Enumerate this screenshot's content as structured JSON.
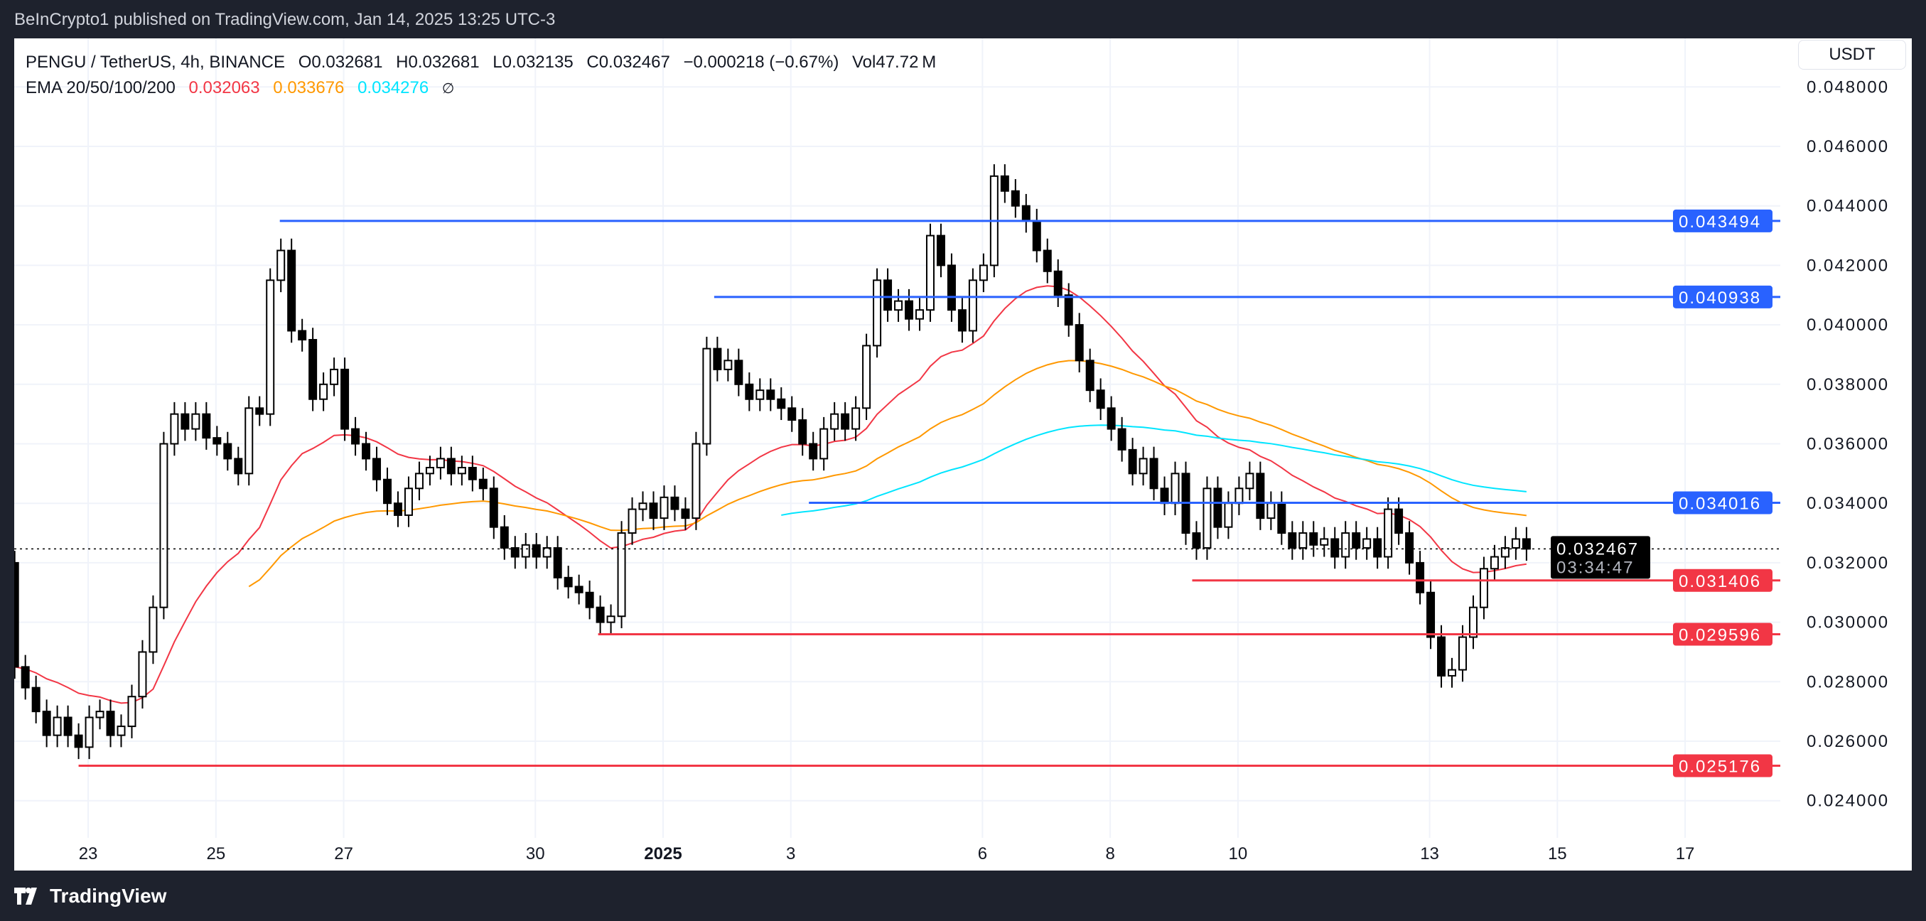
{
  "header": {
    "published": "BeInCrypto1 published on TradingView.com, Jan 14, 2025 13:25 UTC-3"
  },
  "legend": {
    "symbol": "PENGU / TetherUS, 4h, BINANCE",
    "open": "O0.032681",
    "high": "H0.032681",
    "low": "L0.032135",
    "close": "C0.032467",
    "change": "−0.000218 (−0.67%)",
    "volume": "Vol47.72 M",
    "ema_label": "EMA 20/50/100/200",
    "ema_values": [
      "0.032063",
      "0.033676",
      "0.034276"
    ],
    "ema_colors": [
      "#f23645",
      "#ff9800",
      "#00e5ff"
    ],
    "visibility_icon": "eye-off-icon"
  },
  "currency_button": "USDT",
  "footer": {
    "logo": "TradingView"
  },
  "chart_data": {
    "type": "candlestick",
    "interval": "4h",
    "x_tick_labels": [
      "23",
      "25",
      "27",
      "30",
      "2025",
      "3",
      "6",
      "8",
      "10",
      "13",
      "15",
      "17"
    ],
    "y_ticks": [
      0.024,
      0.026,
      0.028,
      0.03,
      0.032,
      0.034,
      0.036,
      0.038,
      0.04,
      0.042,
      0.044,
      0.046,
      0.048
    ],
    "y_tick_labels": [
      "0.024000",
      "0.026000",
      "0.028000",
      "0.030000",
      "0.032000",
      "0.034000",
      "0.036000",
      "0.038000",
      "0.040000",
      "0.042000",
      "0.044000",
      "0.046000",
      "0.048000"
    ],
    "ylim": [
      0.0228,
      0.0486
    ],
    "first_open": 0.032,
    "closes": [
      0.0285,
      0.0278,
      0.027,
      0.0262,
      0.0268,
      0.0262,
      0.0258,
      0.0268,
      0.027,
      0.0262,
      0.0265,
      0.0275,
      0.029,
      0.0305,
      0.036,
      0.037,
      0.0365,
      0.037,
      0.0362,
      0.036,
      0.0355,
      0.035,
      0.0372,
      0.037,
      0.0415,
      0.0425,
      0.0398,
      0.0395,
      0.0375,
      0.038,
      0.0385,
      0.0365,
      0.036,
      0.0355,
      0.0348,
      0.034,
      0.0336,
      0.0345,
      0.035,
      0.0352,
      0.0355,
      0.035,
      0.0352,
      0.0348,
      0.0345,
      0.0332,
      0.0325,
      0.0322,
      0.0326,
      0.0322,
      0.0325,
      0.0315,
      0.0312,
      0.031,
      0.0305,
      0.03,
      0.0302,
      0.033,
      0.0338,
      0.034,
      0.0335,
      0.0342,
      0.0338,
      0.0335,
      0.036,
      0.0392,
      0.0385,
      0.0388,
      0.038,
      0.0375,
      0.0378,
      0.0375,
      0.0372,
      0.0368,
      0.036,
      0.0355,
      0.0365,
      0.037,
      0.0365,
      0.0372,
      0.0393,
      0.0415,
      0.0405,
      0.0408,
      0.0402,
      0.0405,
      0.043,
      0.042,
      0.0405,
      0.0398,
      0.0415,
      0.042,
      0.045,
      0.0445,
      0.044,
      0.0435,
      0.0425,
      0.0418,
      0.041,
      0.04,
      0.0388,
      0.0378,
      0.0372,
      0.0365,
      0.0358,
      0.035,
      0.0355,
      0.0345,
      0.034,
      0.035,
      0.033,
      0.0325,
      0.0345,
      0.0332,
      0.034,
      0.0345,
      0.035,
      0.0335,
      0.034,
      0.033,
      0.0325,
      0.033,
      0.0326,
      0.0328,
      0.0322,
      0.033,
      0.0325,
      0.0328,
      0.0322,
      0.0338,
      0.033,
      0.032,
      0.031,
      0.0295,
      0.0282,
      0.0284,
      0.0295,
      0.0305,
      0.0318,
      0.0322,
      0.0325,
      0.0328,
      0.032467
    ],
    "levels": [
      {
        "price": 0.043494,
        "label": "0.043494",
        "color": "#2962ff"
      },
      {
        "price": 0.040938,
        "label": "0.040938",
        "color": "#2962ff"
      },
      {
        "price": 0.034016,
        "label": "0.034016",
        "color": "#2962ff"
      },
      {
        "price": 0.031406,
        "label": "0.031406",
        "color": "#f23645"
      },
      {
        "price": 0.029596,
        "label": "0.029596",
        "color": "#f23645"
      },
      {
        "price": 0.025176,
        "label": "0.025176",
        "color": "#f23645"
      }
    ],
    "last_price": {
      "price": 0.032467,
      "label": "0.032467",
      "countdown": "03:34:47"
    },
    "ema_periods": [
      20,
      50,
      100
    ],
    "grid": true
  }
}
